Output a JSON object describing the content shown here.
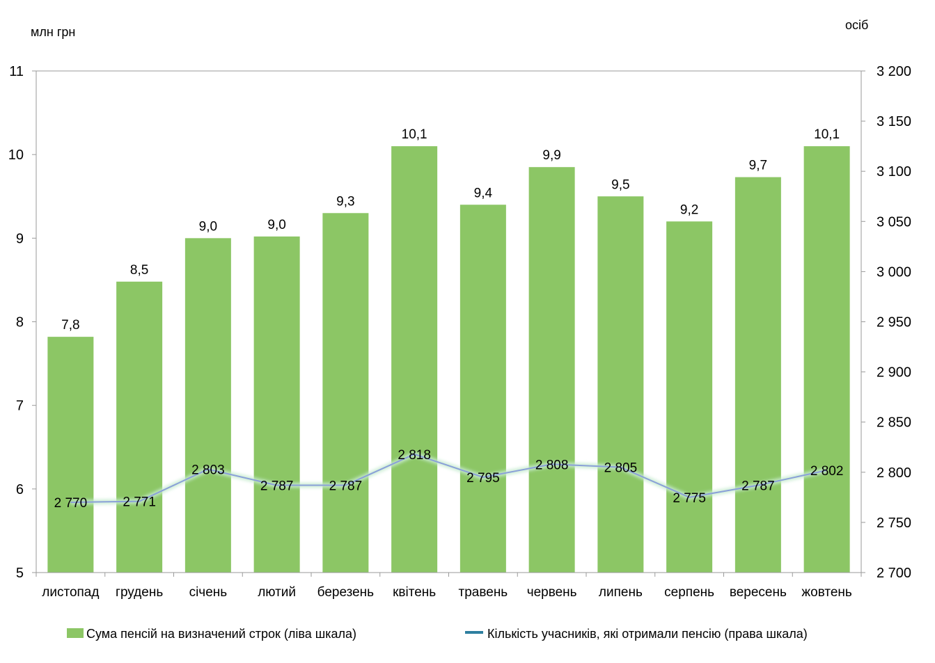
{
  "chart_data": {
    "type": "bar",
    "categories": [
      "листопад",
      "грудень",
      "січень",
      "лютий",
      "березень",
      "квітень",
      "травень",
      "червень",
      "липень",
      "серпень",
      "вересень",
      "жовтень"
    ],
    "left_unit": "млн  грн",
    "right_unit": "осіб",
    "left_ylim": [
      5,
      11
    ],
    "left_ticks": [
      "5",
      "6",
      "7",
      "8",
      "9",
      "10",
      "11"
    ],
    "right_ylim": [
      2700,
      3200
    ],
    "right_ticks": [
      "2 700",
      "2 750",
      "2 800",
      "2 850",
      "2 900",
      "2 950",
      "3 000",
      "3 050",
      "3 100",
      "3 150",
      "3 200"
    ],
    "grid": false,
    "legend_position": "bottom",
    "series": [
      {
        "name": "Сума пенсій  на визначений  строк (ліва шкала)",
        "type": "bar",
        "axis": "left",
        "color": "#8cc665",
        "values": [
          7.82,
          8.48,
          9.0,
          9.02,
          9.3,
          10.1,
          9.4,
          9.85,
          9.5,
          9.2,
          9.73,
          10.1
        ],
        "labels": [
          "7,8",
          "8,5",
          "9,0",
          "9,0",
          "9,3",
          "10,1",
          "9,4",
          "9,9",
          "9,5",
          "9,2",
          "9,7",
          "10,1"
        ]
      },
      {
        "name": "Кількість  учасників,  які  отримали  пенсію (права  шкала)",
        "type": "line",
        "axis": "right",
        "color": "#8aa0d8",
        "values": [
          2770,
          2771,
          2803,
          2787,
          2787,
          2818,
          2795,
          2808,
          2805,
          2775,
          2787,
          2802
        ],
        "labels": [
          "2 770",
          "2 771",
          "2 803",
          "2 787",
          "2 787",
          "2 818",
          "2 795",
          "2 808",
          "2 805",
          "2 775",
          "2 787",
          "2 802"
        ]
      }
    ]
  }
}
